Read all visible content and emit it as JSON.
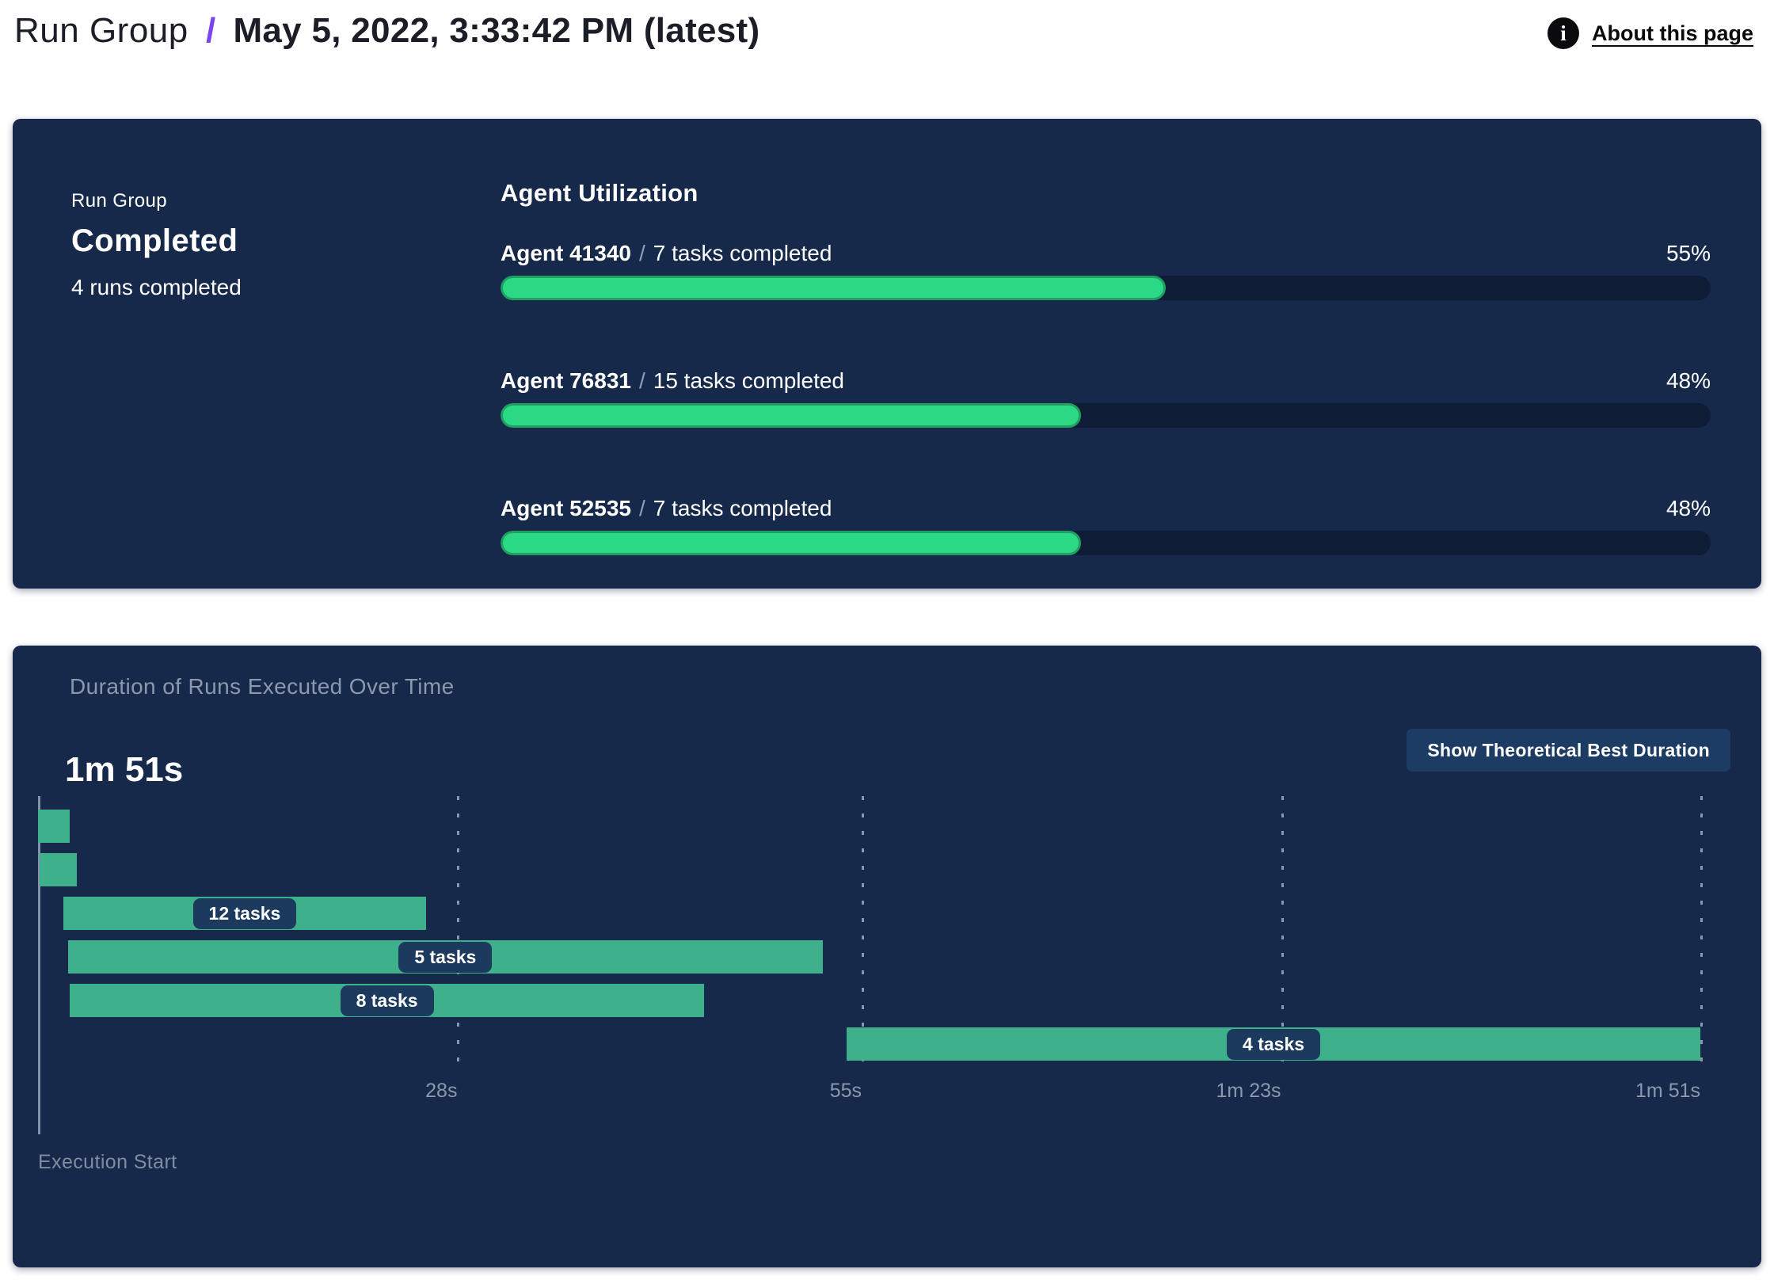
{
  "header": {
    "breadcrumb_root": "Run Group",
    "breadcrumb_separator": "/",
    "title": "May 5, 2022, 3:33:42 PM (latest)",
    "about_link": "About this page",
    "info_icon_glyph": "i",
    "accent_color": "#7a44f0"
  },
  "status_card": {
    "label": "Run Group",
    "status": "Completed",
    "detail": "4 runs completed"
  },
  "utilization": {
    "title": "Agent Utilization",
    "separator": "/",
    "rows": [
      {
        "agent": "Agent 41340",
        "tasks": "7 tasks completed",
        "percent": 55,
        "percent_label": "55%"
      },
      {
        "agent": "Agent 76831",
        "tasks": "15 tasks completed",
        "percent": 48,
        "percent_label": "48%"
      },
      {
        "agent": "Agent 52535",
        "tasks": "7 tasks completed",
        "percent": 48,
        "percent_label": "48%"
      }
    ],
    "bar_fill_color": "#2bd884",
    "bar_fill_border_color": "#219f63",
    "bar_track_color": "#0e1c36"
  },
  "duration_panel": {
    "subtitle": "Duration of Runs Executed Over Time",
    "total_duration": "1m 51s",
    "button_label": "Show Theoretical Best Duration",
    "panel_color": "#16294a",
    "button_color": "#1d3c64"
  },
  "chart_data": {
    "type": "gantt",
    "title": "Duration of Runs Executed Over Time",
    "total_duration_label": "1m 51s",
    "axis_start_label": "Execution Start",
    "xlim_seconds": [
      0,
      111
    ],
    "grid": "dashed-vertical",
    "bar_color": "#3eb18c",
    "label_pill_color": "#1c3a5e",
    "x_ticks": [
      {
        "label": "28s",
        "seconds": 28
      },
      {
        "label": "55s",
        "seconds": 55
      },
      {
        "label": "1m 23s",
        "seconds": 83
      },
      {
        "label": "1m 51s",
        "seconds": 111
      }
    ],
    "runs": [
      {
        "label": "",
        "tasks": null,
        "start_s": 0,
        "end_s": 2.1
      },
      {
        "label": "",
        "tasks": null,
        "start_s": 0.1,
        "end_s": 2.6
      },
      {
        "label": "12 tasks",
        "tasks": 12,
        "start_s": 1.7,
        "end_s": 25.9
      },
      {
        "label": "5 tasks",
        "tasks": 5,
        "start_s": 2.0,
        "end_s": 52.4
      },
      {
        "label": "8 tasks",
        "tasks": 8,
        "start_s": 2.1,
        "end_s": 44.5
      },
      {
        "label": "4 tasks",
        "tasks": 4,
        "start_s": 54.0,
        "end_s": 111.0
      }
    ]
  }
}
